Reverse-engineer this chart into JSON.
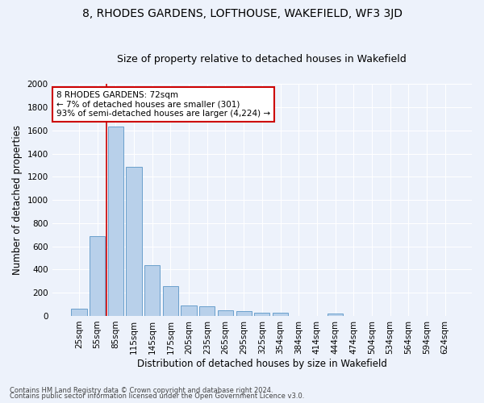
{
  "title": "8, RHODES GARDENS, LOFTHOUSE, WAKEFIELD, WF3 3JD",
  "subtitle": "Size of property relative to detached houses in Wakefield",
  "xlabel": "Distribution of detached houses by size in Wakefield",
  "ylabel": "Number of detached properties",
  "categories": [
    "25sqm",
    "55sqm",
    "85sqm",
    "115sqm",
    "145sqm",
    "175sqm",
    "205sqm",
    "235sqm",
    "265sqm",
    "295sqm",
    "325sqm",
    "354sqm",
    "384sqm",
    "414sqm",
    "444sqm",
    "474sqm",
    "504sqm",
    "534sqm",
    "564sqm",
    "594sqm",
    "624sqm"
  ],
  "values": [
    65,
    690,
    1635,
    1285,
    435,
    255,
    90,
    85,
    50,
    40,
    28,
    28,
    0,
    0,
    18,
    0,
    0,
    0,
    0,
    0,
    0
  ],
  "bar_color": "#b8d0ea",
  "bar_edge_color": "#6aa0cc",
  "vline_x": 1.5,
  "annotation_text": "8 RHODES GARDENS: 72sqm\n← 7% of detached houses are smaller (301)\n93% of semi-detached houses are larger (4,224) →",
  "annotation_box_color": "#ffffff",
  "annotation_box_edge_color": "#cc0000",
  "vline_color": "#cc0000",
  "ylim": [
    0,
    2000
  ],
  "yticks": [
    0,
    200,
    400,
    600,
    800,
    1000,
    1200,
    1400,
    1600,
    1800,
    2000
  ],
  "footer_line1": "Contains HM Land Registry data © Crown copyright and database right 2024.",
  "footer_line2": "Contains public sector information licensed under the Open Government Licence v3.0.",
  "bg_color": "#edf2fb",
  "grid_color": "#ffffff",
  "title_fontsize": 10,
  "subtitle_fontsize": 9,
  "axis_label_fontsize": 8.5,
  "tick_fontsize": 7.5,
  "annotation_fontsize": 7.5,
  "footer_fontsize": 6.0
}
